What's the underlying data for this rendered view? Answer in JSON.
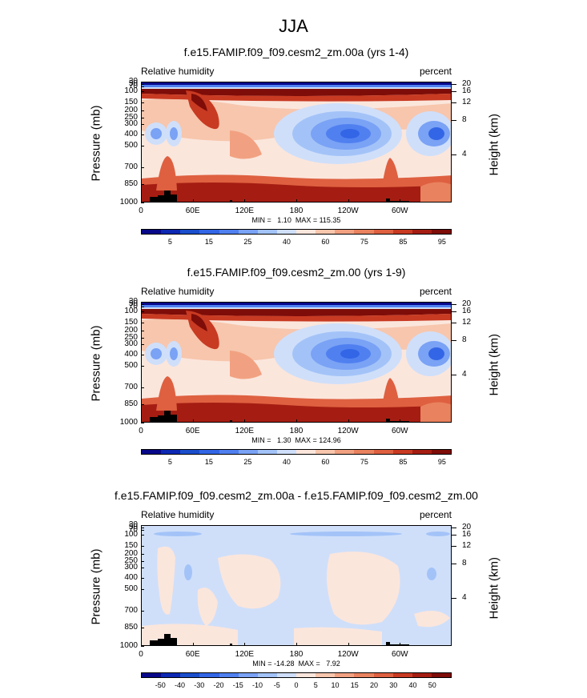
{
  "page_title": "JJA",
  "colors": {
    "rh_levels": [
      "#08088a",
      "#0d28b3",
      "#1a4ecc",
      "#3366e6",
      "#5080f0",
      "#7aa2f5",
      "#a3c3f8",
      "#cfdffa",
      "#fbe6dc",
      "#f7c6ad",
      "#f1a181",
      "#e9825f",
      "#de6040",
      "#c83a22",
      "#a51d12",
      "#7e0c08"
    ],
    "diff_levels": [
      "#08088a",
      "#0d28b3",
      "#1a4ecc",
      "#3366e6",
      "#5080f0",
      "#7aa2f5",
      "#a3c3f8",
      "#cfdffa",
      "#fbe6dc",
      "#f7c6ad",
      "#f1a181",
      "#e9825f",
      "#de6040",
      "#c83a22",
      "#a51d12",
      "#7e0c08"
    ],
    "terrain": "#000000"
  },
  "chart_data": [
    {
      "type": "heatmap",
      "title": "f.e15.FAMIP.f09_f09.cesm2_zm.00a (yrs 1-4)",
      "left_label": "Relative humidity",
      "right_label": "percent",
      "ylabel": "Pressure (mb)",
      "y2label": "Height (km)",
      "x_ticks": [
        "0",
        "60E",
        "120E",
        "180",
        "120W",
        "60W"
      ],
      "y_ticks": [
        "30",
        "50",
        "70",
        "100",
        "150",
        "200",
        "250",
        "300",
        "400",
        "500",
        "700",
        "850",
        "1000"
      ],
      "y2_ticks": [
        "20",
        "16",
        "12",
        "8",
        "4"
      ],
      "minmax": "MIN =   1.10  MAX = 115.35",
      "colorbar_labels": [
        "5",
        "15",
        "25",
        "40",
        "60",
        "75",
        "85",
        "95"
      ],
      "ylim": [
        1000,
        30
      ],
      "xlim": [
        0,
        360
      ]
    },
    {
      "type": "heatmap",
      "title": "f.e15.FAMIP.f09_f09.cesm2_zm.00 (yrs 1-9)",
      "left_label": "Relative humidity",
      "right_label": "percent",
      "ylabel": "Pressure (mb)",
      "y2label": "Height (km)",
      "x_ticks": [
        "0",
        "60E",
        "120E",
        "180",
        "120W",
        "60W"
      ],
      "y_ticks": [
        "30",
        "50",
        "70",
        "100",
        "150",
        "200",
        "250",
        "300",
        "400",
        "500",
        "700",
        "850",
        "1000"
      ],
      "y2_ticks": [
        "20",
        "16",
        "12",
        "8",
        "4"
      ],
      "minmax": "MIN =   1.30  MAX = 124.96",
      "colorbar_labels": [
        "5",
        "15",
        "25",
        "40",
        "60",
        "75",
        "85",
        "95"
      ],
      "ylim": [
        1000,
        30
      ],
      "xlim": [
        0,
        360
      ]
    },
    {
      "type": "heatmap",
      "title": "f.e15.FAMIP.f09_f09.cesm2_zm.00a - f.e15.FAMIP.f09_f09.cesm2_zm.00",
      "left_label": "Relative humidity",
      "right_label": "percent",
      "ylabel": "Pressure (mb)",
      "y2label": "Height (km)",
      "x_ticks": [
        "0",
        "60E",
        "120E",
        "180",
        "120W",
        "60W"
      ],
      "y_ticks": [
        "30",
        "50",
        "70",
        "100",
        "150",
        "200",
        "250",
        "300",
        "400",
        "500",
        "700",
        "850",
        "1000"
      ],
      "y2_ticks": [
        "20",
        "16",
        "12",
        "8",
        "4"
      ],
      "minmax": "MIN = -14.28  MAX =   7.92",
      "colorbar_labels": [
        "-50",
        "-40",
        "-30",
        "-20",
        "-15",
        "-10",
        "-5",
        "0",
        "5",
        "10",
        "15",
        "20",
        "30",
        "40",
        "50"
      ],
      "ylim": [
        1000,
        30
      ],
      "xlim": [
        0,
        360
      ]
    }
  ]
}
